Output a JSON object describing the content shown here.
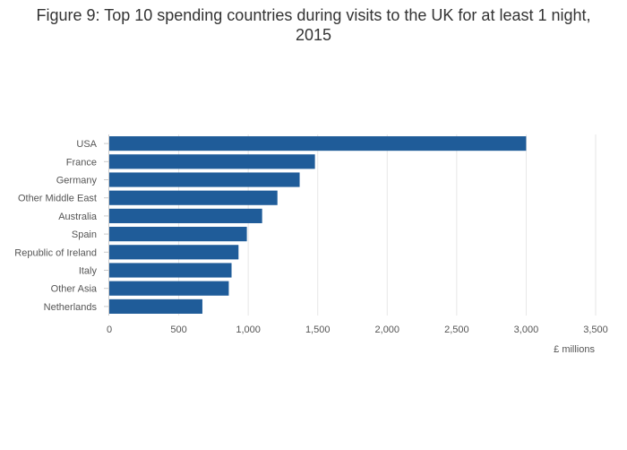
{
  "chart_data": {
    "type": "bar",
    "orientation": "horizontal",
    "title": "Figure 9: Top 10 spending countries during visits to the UK for at least 1 night, 2015",
    "xlabel": "£ millions",
    "ylabel": "",
    "categories": [
      "USA",
      "France",
      "Germany",
      "Other Middle East",
      "Australia",
      "Spain",
      "Republic of Ireland",
      "Italy",
      "Other Asia",
      "Netherlands"
    ],
    "values": [
      3000,
      1480,
      1370,
      1210,
      1100,
      990,
      930,
      880,
      860,
      670
    ],
    "xlim": [
      0,
      3500
    ],
    "xticks": [
      0,
      500,
      1000,
      1500,
      2000,
      2500,
      3000,
      3500
    ],
    "xtick_labels": [
      "0",
      "500",
      "1,000",
      "1,500",
      "2,000",
      "2,500",
      "3,000",
      "3,500"
    ],
    "grid": true,
    "bar_color": "#1f5c99",
    "grid_color": "#e6e6e6"
  }
}
